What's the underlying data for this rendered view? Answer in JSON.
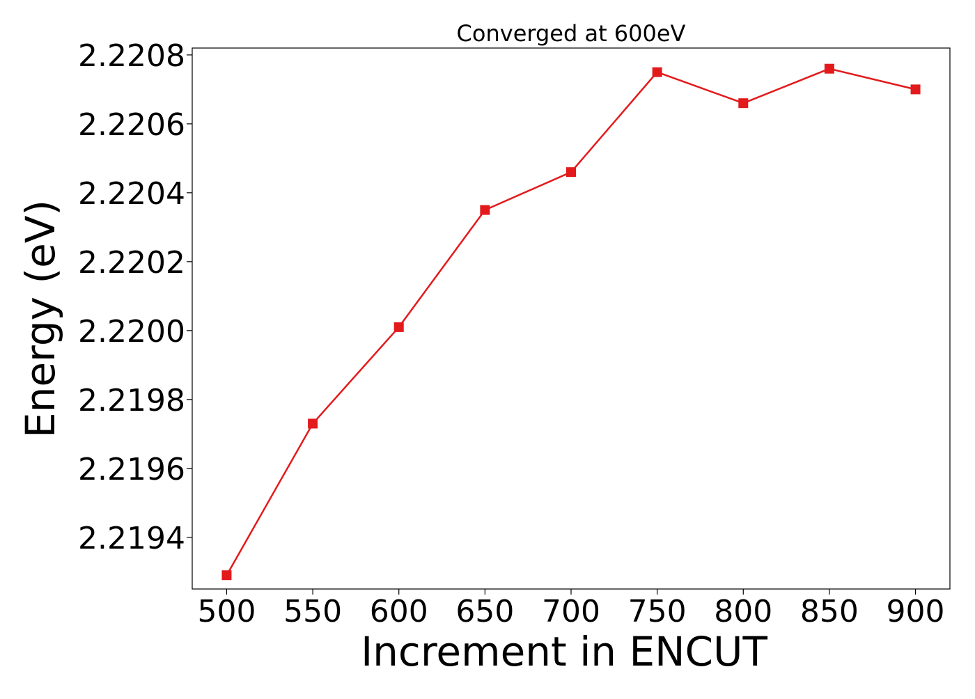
{
  "chart_data": {
    "type": "line",
    "title": "Converged at 600eV",
    "xlabel": "Increment in ENCUT",
    "ylabel": "Energy (eV)",
    "x": [
      500,
      550,
      600,
      650,
      700,
      750,
      800,
      850,
      900
    ],
    "xlim": [
      480,
      920
    ],
    "ylim": [
      2.21925,
      2.22082
    ],
    "xticks": [
      500,
      550,
      600,
      650,
      700,
      750,
      800,
      850,
      900
    ],
    "yticks": [
      2.2194,
      2.2196,
      2.2198,
      2.22,
      2.2202,
      2.2204,
      2.2206,
      2.2208
    ],
    "ytick_labels": [
      "2.2194",
      "2.2196",
      "2.2198",
      "2.2200",
      "2.2202",
      "2.2204",
      "2.2206",
      "2.2208"
    ],
    "grid": false,
    "series": [
      {
        "values": [
          2.21929,
          2.21973,
          2.22001,
          2.22035,
          2.22046,
          2.22075,
          2.22066,
          2.22076,
          2.2207
        ],
        "color": "#e31a1c",
        "marker": "square"
      }
    ]
  }
}
